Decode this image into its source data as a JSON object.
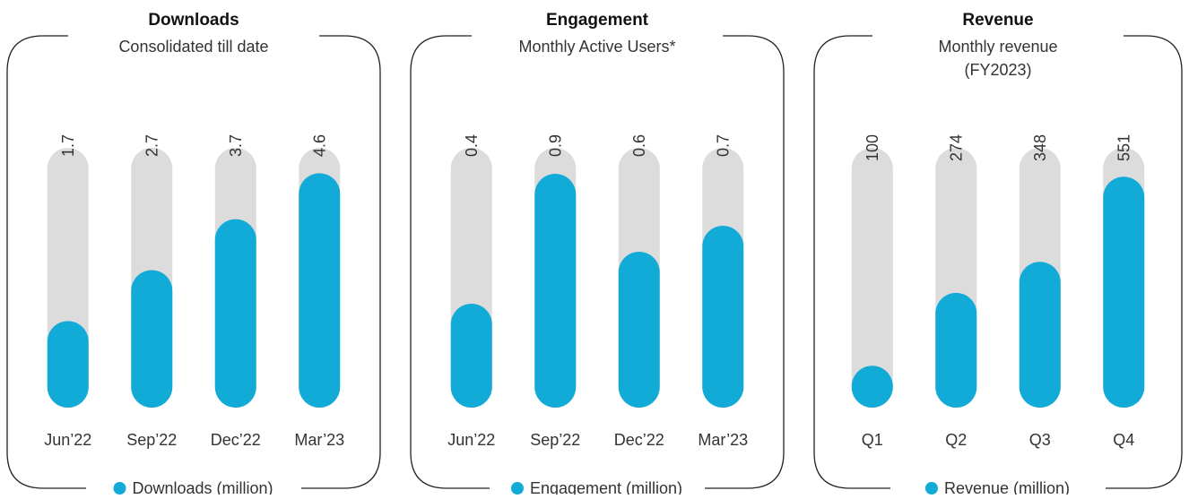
{
  "chart_data": [
    {
      "type": "bar",
      "title": "Downloads",
      "subtitle": [
        "Consolidated till date"
      ],
      "categories": [
        "Jun’22",
        "Sep’22",
        "Dec’22",
        "Mar’23"
      ],
      "series": [
        {
          "name": "Downloads (million)",
          "color": "#12aad6",
          "values": [
            1.7,
            2.7,
            3.7,
            4.6
          ]
        }
      ],
      "ylim": [
        0,
        5.1
      ],
      "track_color": "#dcdcdc"
    },
    {
      "type": "bar",
      "title": "Engagement",
      "subtitle": [
        "Monthly Active Users*"
      ],
      "categories": [
        "Jun’22",
        "Sep’22",
        "Dec’22",
        "Mar’23"
      ],
      "series": [
        {
          "name": "Engagement (million)",
          "color": "#12aad6",
          "values": [
            0.4,
            0.9,
            0.6,
            0.7
          ]
        }
      ],
      "ylim": [
        0,
        1.0
      ],
      "track_color": "#dcdcdc"
    },
    {
      "type": "bar",
      "title": "Revenue",
      "subtitle": [
        "Monthly revenue",
        "(FY2023)"
      ],
      "categories": [
        "Q1",
        "Q2",
        "Q3",
        "Q4"
      ],
      "series": [
        {
          "name": "Revenue (million)",
          "color": "#12aad6",
          "values": [
            100,
            274,
            348,
            551
          ]
        }
      ],
      "ylim": [
        0,
        620
      ],
      "track_color": "#dcdcdc"
    }
  ]
}
